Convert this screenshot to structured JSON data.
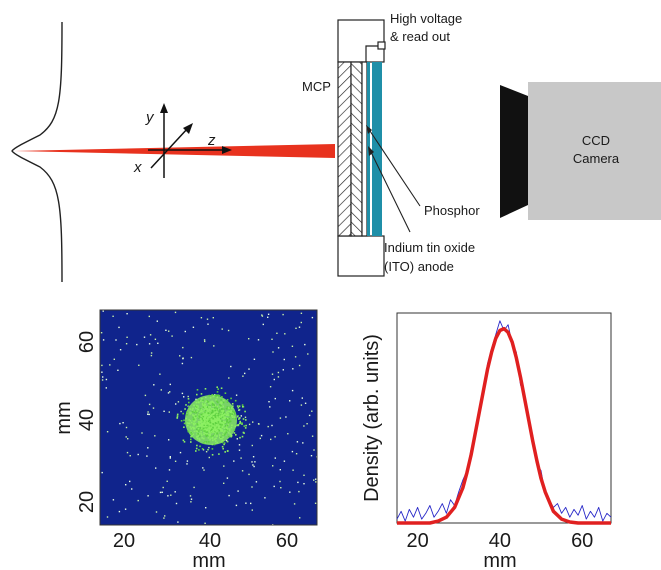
{
  "diagram": {
    "labels": {
      "mcp": "MCP",
      "high_voltage_line1": "High voltage",
      "high_voltage_line2": "& read out",
      "ccd_line1": "CCD",
      "ccd_line2": "Camera",
      "phosphor": "Phosphor",
      "ito_line1": "Indium tin oxide",
      "ito_line2": "(ITO) anode",
      "axis_x": "x",
      "axis_y": "y",
      "axis_z": "z"
    },
    "colors": {
      "beam": "#e8321e",
      "phosphor_plate": "#1f8fa8",
      "ccd_body": "#c8c8c8",
      "ccd_lens": "#111111",
      "image_background": "#10248c",
      "image_spot": "#8cf062",
      "fit_curve": "#e02020",
      "profile_data": "#2828c8"
    }
  },
  "image_panel": {
    "x_ticks": [
      "20",
      "40",
      "60"
    ],
    "y_ticks": [
      "20",
      "40",
      "60"
    ],
    "xlabel": "mm",
    "ylabel": "mm"
  },
  "chart_data": {
    "type": "line",
    "xlabel": "mm",
    "ylabel": "Density (arb. units)",
    "xlim": [
      15,
      67
    ],
    "ylim": [
      0,
      1.08
    ],
    "x_ticks": [
      "20",
      "40",
      "60"
    ],
    "series": [
      {
        "style": "fit",
        "color": "#e02020",
        "x": [
          15,
          17,
          19,
          21,
          23,
          25,
          27,
          29,
          31,
          32,
          33,
          34,
          35,
          36,
          37,
          38,
          39,
          40,
          41,
          42,
          43,
          44,
          45,
          46,
          47,
          48,
          49,
          50,
          51,
          53,
          55,
          57,
          59,
          61,
          63,
          65,
          67
        ],
        "values": [
          0,
          0,
          0,
          0,
          0,
          0.01,
          0.03,
          0.08,
          0.18,
          0.26,
          0.35,
          0.46,
          0.57,
          0.68,
          0.79,
          0.88,
          0.95,
          0.99,
          1.0,
          0.98,
          0.93,
          0.85,
          0.75,
          0.64,
          0.53,
          0.42,
          0.32,
          0.23,
          0.16,
          0.06,
          0.02,
          0.005,
          0,
          0,
          0,
          0,
          0
        ]
      },
      {
        "style": "data",
        "color": "#2828c8",
        "x": [
          15,
          16,
          17,
          18,
          19,
          20,
          21,
          22,
          23,
          24,
          25,
          26,
          27,
          28,
          29,
          30,
          31,
          32,
          33,
          34,
          35,
          36,
          37,
          38,
          39,
          40,
          41,
          42,
          43,
          44,
          45,
          46,
          47,
          48,
          49,
          50,
          51,
          52,
          53,
          54,
          55,
          56,
          57,
          58,
          59,
          60,
          61,
          62,
          63,
          64,
          65,
          66,
          67
        ],
        "values": [
          0.02,
          0.06,
          0.01,
          0.07,
          0.03,
          0.08,
          0.02,
          0.05,
          0.09,
          0.03,
          0.06,
          0.1,
          0.05,
          0.12,
          0.09,
          0.16,
          0.22,
          0.27,
          0.38,
          0.44,
          0.58,
          0.66,
          0.82,
          0.9,
          0.97,
          1.04,
          0.99,
          1.02,
          0.92,
          0.88,
          0.71,
          0.66,
          0.51,
          0.45,
          0.3,
          0.27,
          0.15,
          0.12,
          0.08,
          0.1,
          0.05,
          0.08,
          0.03,
          0.07,
          0.04,
          0.09,
          0.02,
          0.06,
          0.03,
          0.08,
          0.01,
          0.05,
          0.03
        ]
      }
    ]
  }
}
